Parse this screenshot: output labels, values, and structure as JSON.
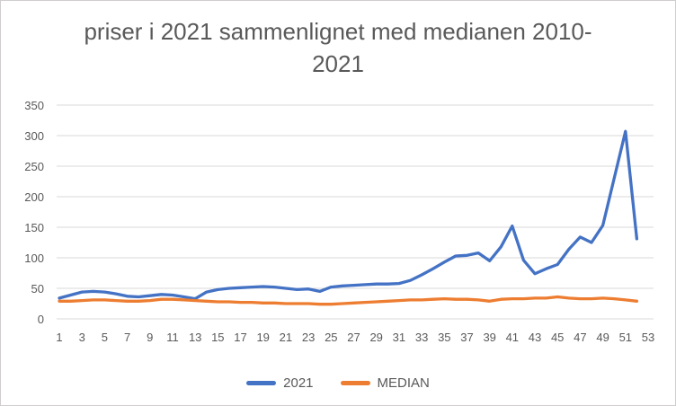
{
  "chart_data": {
    "type": "line",
    "title": "priser i 2021 sammenlignet med medianen 2010-2021",
    "xlabel": "",
    "ylabel": "",
    "ylim": [
      0,
      350
    ],
    "y_ticks": [
      0,
      50,
      100,
      150,
      200,
      250,
      300,
      350
    ],
    "x_categories_total": 53,
    "x_axis_tick_labels": [
      "1",
      "3",
      "5",
      "7",
      "9",
      "11",
      "13",
      "15",
      "17",
      "19",
      "21",
      "23",
      "25",
      "27",
      "29",
      "31",
      "33",
      "35",
      "37",
      "39",
      "41",
      "43",
      "45",
      "47",
      "49",
      "51",
      "53"
    ],
    "grid": "horizontal",
    "gridline_color": "#d9d9d9",
    "legend_position": "bottom",
    "x": [
      1,
      2,
      3,
      4,
      5,
      6,
      7,
      8,
      9,
      10,
      11,
      12,
      13,
      14,
      15,
      16,
      17,
      18,
      19,
      20,
      21,
      22,
      23,
      24,
      25,
      26,
      27,
      28,
      29,
      30,
      31,
      32,
      33,
      34,
      35,
      36,
      37,
      38,
      39,
      40,
      41,
      42,
      43,
      44,
      45,
      46,
      47,
      48,
      49,
      50,
      51,
      52
    ],
    "series": [
      {
        "name": "2021",
        "color": "#4472c4",
        "values": [
          34,
          39,
          44,
          45,
          44,
          41,
          37,
          36,
          38,
          40,
          39,
          36,
          33,
          44,
          48,
          50,
          51,
          52,
          53,
          52,
          50,
          48,
          49,
          45,
          52,
          54,
          55,
          56,
          57,
          57,
          58,
          63,
          72,
          82,
          93,
          103,
          104,
          108,
          95,
          118,
          152,
          96,
          74,
          82,
          89,
          114,
          134,
          125,
          153,
          230,
          307,
          131
        ]
      },
      {
        "name": "MEDIAN",
        "color": "#ed7d31",
        "values": [
          29,
          29,
          30,
          31,
          31,
          30,
          29,
          29,
          30,
          32,
          32,
          31,
          30,
          29,
          28,
          28,
          27,
          27,
          26,
          26,
          25,
          25,
          25,
          24,
          24,
          25,
          26,
          27,
          28,
          29,
          30,
          31,
          31,
          32,
          33,
          32,
          32,
          31,
          29,
          32,
          33,
          33,
          34,
          34,
          36,
          34,
          33,
          33,
          34,
          33,
          31,
          29
        ]
      }
    ]
  }
}
